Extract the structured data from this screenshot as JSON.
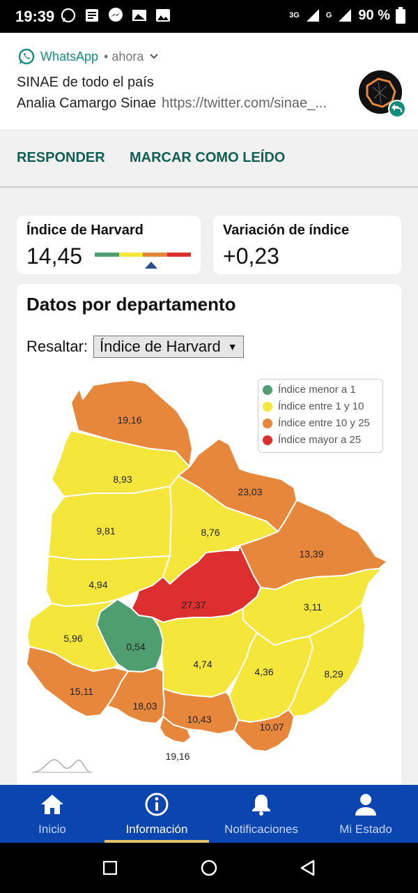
{
  "status_bar": {
    "time": "19:39",
    "network_3g": "3G",
    "network_g": "G",
    "battery": "90 %"
  },
  "notification": {
    "app_name": "WhatsApp",
    "time": "• ahora",
    "title": "SINAE de todo el país",
    "sender": "Analia Camargo Sinae",
    "link": "https://twitter.com/sinae_..."
  },
  "actions": {
    "reply": "RESPONDER",
    "mark_read": "MARCAR COMO LEÍDO"
  },
  "harvard": {
    "title": "Índice de Harvard",
    "value": "14,45"
  },
  "variation": {
    "title": "Variación de índice",
    "value": "+0,23"
  },
  "departments": {
    "title": "Datos por departamento",
    "highlight_label": "Resaltar:",
    "highlight_value": "Índice de Harvard"
  },
  "legend": [
    {
      "label": "Índice menor a 1",
      "color": "#4e9e71"
    },
    {
      "label": "Índice entre 1 y 10",
      "color": "#f5e63c"
    },
    {
      "label": "Índice entre 10 y 25",
      "color": "#e7873b"
    },
    {
      "label": "Índice mayor a 25",
      "color": "#dd2f2f"
    }
  ],
  "map_values": {
    "artigas": "19,16",
    "salto": "8,93",
    "rivera": "23,03",
    "paysandu": "9,81",
    "tacuarembo": "8,76",
    "cerro_largo": "13,39",
    "rio_negro": "4,94",
    "durazno": "27,37",
    "treinta_y_tres": "3,11",
    "soriano": "5,96",
    "flores": "0,54",
    "florida": "4,74",
    "lavalleja": "4,36",
    "rocha": "8,29",
    "colonia": "15,11",
    "san_jose": "18,03",
    "canelones": "10,43",
    "maldonado": "10,07",
    "montevideo": "19,16"
  },
  "bottom_nav": {
    "home": "Inicio",
    "info": "Información",
    "notifications": "Notificaciones",
    "status": "Mi Estado"
  },
  "colors": {
    "green": "#4e9e71",
    "yellow": "#f5e63c",
    "orange": "#e7873b",
    "red": "#dd2f2f",
    "nav": "#0b45b0"
  }
}
